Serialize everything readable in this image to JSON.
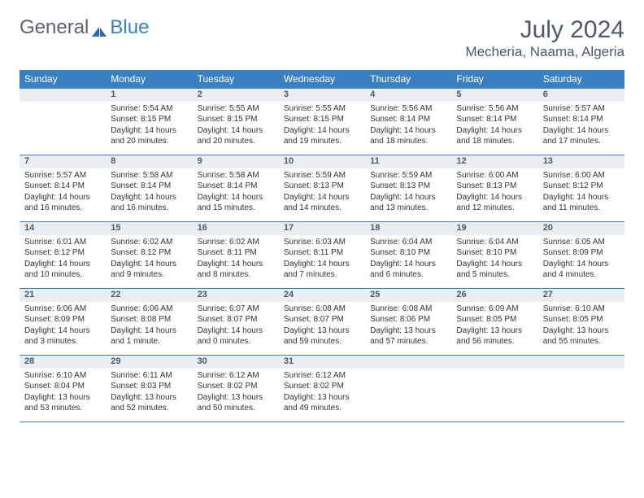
{
  "logo": {
    "general": "General",
    "blue": "Blue"
  },
  "title": "July 2024",
  "location": "Mecheria, Naama, Algeria",
  "header_color": "#3a80c0",
  "daynum_bg": "#e9eef3",
  "text_color": "#4a5a6a",
  "days_of_week": [
    "Sunday",
    "Monday",
    "Tuesday",
    "Wednesday",
    "Thursday",
    "Friday",
    "Saturday"
  ],
  "weeks": [
    [
      null,
      {
        "n": "1",
        "sr": "Sunrise: 5:54 AM",
        "ss": "Sunset: 8:15 PM",
        "dl": "Daylight: 14 hours and 20 minutes."
      },
      {
        "n": "2",
        "sr": "Sunrise: 5:55 AM",
        "ss": "Sunset: 8:15 PM",
        "dl": "Daylight: 14 hours and 20 minutes."
      },
      {
        "n": "3",
        "sr": "Sunrise: 5:55 AM",
        "ss": "Sunset: 8:15 PM",
        "dl": "Daylight: 14 hours and 19 minutes."
      },
      {
        "n": "4",
        "sr": "Sunrise: 5:56 AM",
        "ss": "Sunset: 8:14 PM",
        "dl": "Daylight: 14 hours and 18 minutes."
      },
      {
        "n": "5",
        "sr": "Sunrise: 5:56 AM",
        "ss": "Sunset: 8:14 PM",
        "dl": "Daylight: 14 hours and 18 minutes."
      },
      {
        "n": "6",
        "sr": "Sunrise: 5:57 AM",
        "ss": "Sunset: 8:14 PM",
        "dl": "Daylight: 14 hours and 17 minutes."
      }
    ],
    [
      {
        "n": "7",
        "sr": "Sunrise: 5:57 AM",
        "ss": "Sunset: 8:14 PM",
        "dl": "Daylight: 14 hours and 16 minutes."
      },
      {
        "n": "8",
        "sr": "Sunrise: 5:58 AM",
        "ss": "Sunset: 8:14 PM",
        "dl": "Daylight: 14 hours and 16 minutes."
      },
      {
        "n": "9",
        "sr": "Sunrise: 5:58 AM",
        "ss": "Sunset: 8:14 PM",
        "dl": "Daylight: 14 hours and 15 minutes."
      },
      {
        "n": "10",
        "sr": "Sunrise: 5:59 AM",
        "ss": "Sunset: 8:13 PM",
        "dl": "Daylight: 14 hours and 14 minutes."
      },
      {
        "n": "11",
        "sr": "Sunrise: 5:59 AM",
        "ss": "Sunset: 8:13 PM",
        "dl": "Daylight: 14 hours and 13 minutes."
      },
      {
        "n": "12",
        "sr": "Sunrise: 6:00 AM",
        "ss": "Sunset: 8:13 PM",
        "dl": "Daylight: 14 hours and 12 minutes."
      },
      {
        "n": "13",
        "sr": "Sunrise: 6:00 AM",
        "ss": "Sunset: 8:12 PM",
        "dl": "Daylight: 14 hours and 11 minutes."
      }
    ],
    [
      {
        "n": "14",
        "sr": "Sunrise: 6:01 AM",
        "ss": "Sunset: 8:12 PM",
        "dl": "Daylight: 14 hours and 10 minutes."
      },
      {
        "n": "15",
        "sr": "Sunrise: 6:02 AM",
        "ss": "Sunset: 8:12 PM",
        "dl": "Daylight: 14 hours and 9 minutes."
      },
      {
        "n": "16",
        "sr": "Sunrise: 6:02 AM",
        "ss": "Sunset: 8:11 PM",
        "dl": "Daylight: 14 hours and 8 minutes."
      },
      {
        "n": "17",
        "sr": "Sunrise: 6:03 AM",
        "ss": "Sunset: 8:11 PM",
        "dl": "Daylight: 14 hours and 7 minutes."
      },
      {
        "n": "18",
        "sr": "Sunrise: 6:04 AM",
        "ss": "Sunset: 8:10 PM",
        "dl": "Daylight: 14 hours and 6 minutes."
      },
      {
        "n": "19",
        "sr": "Sunrise: 6:04 AM",
        "ss": "Sunset: 8:10 PM",
        "dl": "Daylight: 14 hours and 5 minutes."
      },
      {
        "n": "20",
        "sr": "Sunrise: 6:05 AM",
        "ss": "Sunset: 8:09 PM",
        "dl": "Daylight: 14 hours and 4 minutes."
      }
    ],
    [
      {
        "n": "21",
        "sr": "Sunrise: 6:06 AM",
        "ss": "Sunset: 8:09 PM",
        "dl": "Daylight: 14 hours and 3 minutes."
      },
      {
        "n": "22",
        "sr": "Sunrise: 6:06 AM",
        "ss": "Sunset: 8:08 PM",
        "dl": "Daylight: 14 hours and 1 minute."
      },
      {
        "n": "23",
        "sr": "Sunrise: 6:07 AM",
        "ss": "Sunset: 8:07 PM",
        "dl": "Daylight: 14 hours and 0 minutes."
      },
      {
        "n": "24",
        "sr": "Sunrise: 6:08 AM",
        "ss": "Sunset: 8:07 PM",
        "dl": "Daylight: 13 hours and 59 minutes."
      },
      {
        "n": "25",
        "sr": "Sunrise: 6:08 AM",
        "ss": "Sunset: 8:06 PM",
        "dl": "Daylight: 13 hours and 57 minutes."
      },
      {
        "n": "26",
        "sr": "Sunrise: 6:09 AM",
        "ss": "Sunset: 8:05 PM",
        "dl": "Daylight: 13 hours and 56 minutes."
      },
      {
        "n": "27",
        "sr": "Sunrise: 6:10 AM",
        "ss": "Sunset: 8:05 PM",
        "dl": "Daylight: 13 hours and 55 minutes."
      }
    ],
    [
      {
        "n": "28",
        "sr": "Sunrise: 6:10 AM",
        "ss": "Sunset: 8:04 PM",
        "dl": "Daylight: 13 hours and 53 minutes."
      },
      {
        "n": "29",
        "sr": "Sunrise: 6:11 AM",
        "ss": "Sunset: 8:03 PM",
        "dl": "Daylight: 13 hours and 52 minutes."
      },
      {
        "n": "30",
        "sr": "Sunrise: 6:12 AM",
        "ss": "Sunset: 8:02 PM",
        "dl": "Daylight: 13 hours and 50 minutes."
      },
      {
        "n": "31",
        "sr": "Sunrise: 6:12 AM",
        "ss": "Sunset: 8:02 PM",
        "dl": "Daylight: 13 hours and 49 minutes."
      },
      null,
      null,
      null
    ]
  ]
}
